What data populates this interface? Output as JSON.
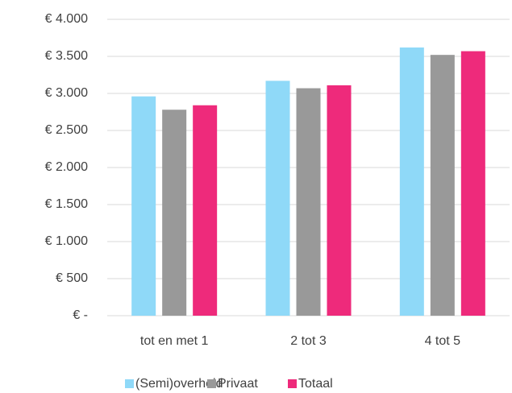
{
  "chart_data": {
    "type": "bar",
    "categories": [
      "tot en met 1",
      "2 tot 3",
      "4 tot 5"
    ],
    "series": [
      {
        "name": "(Semi)overheid",
        "color": "#8fd9f8",
        "values": [
          2960,
          3170,
          3620
        ]
      },
      {
        "name": "Privaat",
        "color": "#999999",
        "values": [
          2780,
          3070,
          3520
        ]
      },
      {
        "name": "Totaal",
        "color": "#ee2a7b",
        "values": [
          2840,
          3110,
          3570
        ]
      }
    ],
    "ylim": [
      0,
      4000
    ],
    "yticks": [
      {
        "value": 0,
        "label": "€ -"
      },
      {
        "value": 500,
        "label": "€ 500"
      },
      {
        "value": 1000,
        "label": "€ 1.000"
      },
      {
        "value": 1500,
        "label": "€ 1.500"
      },
      {
        "value": 2000,
        "label": "€ 2.000"
      },
      {
        "value": 2500,
        "label": "€ 2.500"
      },
      {
        "value": 3000,
        "label": "€ 3.000"
      },
      {
        "value": 3500,
        "label": "€ 3.500"
      },
      {
        "value": 4000,
        "label": "€ 4.000"
      }
    ],
    "grid": true,
    "legend": "bottom"
  }
}
